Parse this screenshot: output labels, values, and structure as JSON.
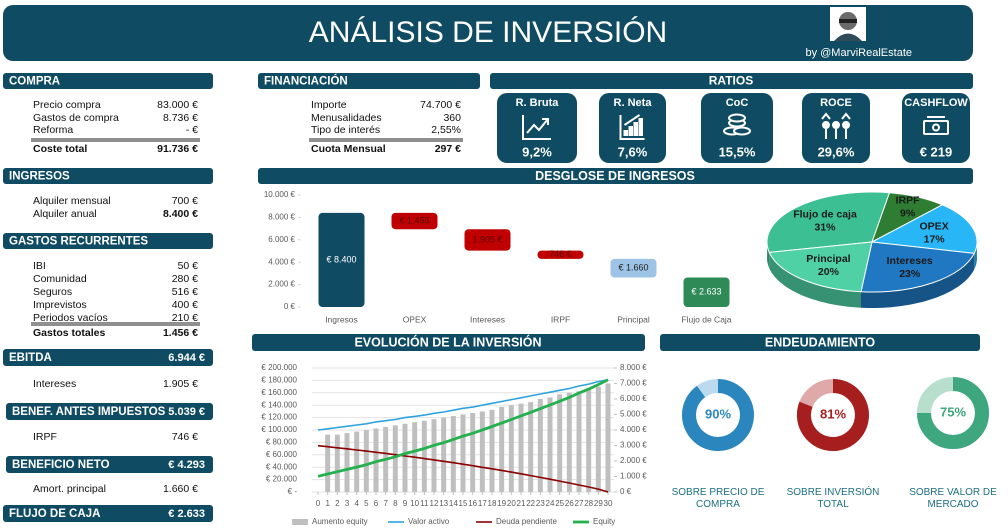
{
  "header": {
    "title": "ANÁLISIS DE INVERSIÓN",
    "byline": "by @MarviRealEstate"
  },
  "compra": {
    "title": "COMPRA",
    "rows": [
      [
        "Precio compra",
        "83.000 €"
      ],
      [
        "Gastos de compra",
        "8.736 €"
      ],
      [
        "Reforma",
        "-   €"
      ]
    ],
    "total": [
      "Coste total",
      "91.736 €"
    ]
  },
  "ingresos": {
    "title": "INGRESOS",
    "rows": [
      [
        "Alquiler mensual",
        "700 €"
      ]
    ],
    "total": [
      "Alquiler anual",
      "8.400 €"
    ]
  },
  "gastos": {
    "title": "GASTOS RECURRENTES",
    "rows": [
      [
        "IBI",
        "50 €"
      ],
      [
        "Comunidad",
        "280 €"
      ],
      [
        "Seguros",
        "516 €"
      ],
      [
        "Imprevistos",
        "400 €"
      ],
      [
        "Periodos vacíos",
        "210 €"
      ]
    ],
    "total": [
      "Gastos totales",
      "1.456 €"
    ]
  },
  "ebitda": {
    "label": "EBITDA",
    "value": "6.944 €"
  },
  "intereses": {
    "label": "Intereses",
    "value": "1.905 €"
  },
  "bai": {
    "label": "BENEF. ANTES IMPUESTOS",
    "value": "5.039 €"
  },
  "irpf": {
    "label": "IRPF",
    "value": "746 €"
  },
  "beneficio_neto": {
    "label": "BENEFICIO NETO",
    "value": "€ 4.293"
  },
  "amortizacion": {
    "label": "Amort. principal",
    "value": "1.660 €"
  },
  "flujo_caja": {
    "label": "FLUJO DE CAJA",
    "value": "€ 2.633"
  },
  "financiacion": {
    "title": "FINANCIACIÓN",
    "rows": [
      [
        "Importe",
        "74.700 €"
      ],
      [
        "Menusalidades",
        "360"
      ],
      [
        "Tipo de interés",
        "2,55%"
      ]
    ],
    "total": [
      "Cuota Mensual",
      "297 €"
    ]
  },
  "ratios": {
    "title": "RATIOS",
    "cards": [
      {
        "label": "R. Bruta",
        "value": "9,2%"
      },
      {
        "label": "R. Neta",
        "value": "7,6%"
      },
      {
        "label": "CoC",
        "value": "15,5%"
      },
      {
        "label": "ROCE",
        "value": "29,6%"
      },
      {
        "label": "CASHFLOW",
        "value": "€ 219"
      }
    ]
  },
  "chart_data": [
    {
      "type": "waterfall",
      "title": "DESGLOSE DE INGRESOS",
      "categories": [
        "Ingresos",
        "OPEX",
        "Intereses",
        "IRPF",
        "Principal",
        "Flujo de Caja"
      ],
      "values": [
        8400,
        1456,
        1905,
        746,
        1660,
        2633
      ],
      "value_labels": [
        "€ 8.400",
        "€ 1.456",
        "1.905 €",
        "746 €",
        "€ 1.660",
        "€ 2.633"
      ],
      "colors": [
        "#0f4c63",
        "#c00000",
        "#c00000",
        "#c00000",
        "#9dc3e6",
        "#2e8b57"
      ],
      "ylim": [
        0,
        10000
      ],
      "yticks": [
        {
          "value": 0,
          "label": "0 €"
        },
        {
          "value": 2000,
          "label": "2.000 €"
        },
        {
          "value": 4000,
          "label": "4.000 €"
        },
        {
          "value": 6000,
          "label": "6.000 €"
        },
        {
          "value": 8000,
          "label": "8.000 €"
        },
        {
          "value": 10000,
          "label": "10.000 €"
        }
      ]
    },
    {
      "type": "pie",
      "categories": [
        "Flujo de caja",
        "IRPF",
        "OPEX",
        "Intereses",
        "Principal"
      ],
      "values": [
        31,
        9,
        17,
        23,
        20
      ],
      "value_labels": [
        "31%",
        "9%",
        "17%",
        "23%",
        "20%"
      ],
      "colors": [
        "#3cbf93",
        "#2e7d32",
        "#29b6f6",
        "#1f78c1",
        "#4fd1a5"
      ]
    },
    {
      "type": "line",
      "title": "EVOLUCIÓN DE LA INVERSIÓN",
      "x": [
        0,
        1,
        2,
        3,
        4,
        5,
        6,
        7,
        8,
        9,
        10,
        11,
        12,
        13,
        14,
        15,
        16,
        17,
        18,
        19,
        20,
        21,
        22,
        23,
        24,
        25,
        26,
        27,
        28,
        29,
        30
      ],
      "xlim": [
        0,
        30
      ],
      "xticks": [
        0,
        1,
        2,
        3,
        4,
        5,
        6,
        7,
        8,
        9,
        10,
        11,
        12,
        13,
        14,
        15,
        16,
        17,
        18,
        19,
        20,
        21,
        22,
        23,
        24,
        25,
        26,
        27,
        28,
        29,
        30
      ],
      "ylim": [
        0,
        200000
      ],
      "yticks": [
        {
          "value": 0,
          "label": "€ -"
        },
        {
          "value": 20000,
          "label": "€ 20.000"
        },
        {
          "value": 40000,
          "label": "€ 40.000"
        },
        {
          "value": 60000,
          "label": "€ 60.000"
        },
        {
          "value": 80000,
          "label": "€ 80.000"
        },
        {
          "value": 100000,
          "label": "€ 100.000"
        },
        {
          "value": 120000,
          "label": "€ 120.000"
        },
        {
          "value": 140000,
          "label": "€ 140.000"
        },
        {
          "value": 160000,
          "label": "€ 160.000"
        },
        {
          "value": 180000,
          "label": "€ 180.000"
        },
        {
          "value": 200000,
          "label": "€ 200.000"
        }
      ],
      "y2lim": [
        0,
        8000
      ],
      "y2ticks": [
        {
          "value": 0,
          "label": "0 €"
        },
        {
          "value": 1000,
          "label": "1.000 €"
        },
        {
          "value": 2000,
          "label": "2.000 €"
        },
        {
          "value": 3000,
          "label": "3.000 €"
        },
        {
          "value": 4000,
          "label": "4.000 €"
        },
        {
          "value": 5000,
          "label": "5.000 €"
        },
        {
          "value": 6000,
          "label": "6.000 €"
        },
        {
          "value": 7000,
          "label": "7.000 €"
        },
        {
          "value": 8000,
          "label": "8.000 €"
        }
      ],
      "grid": true,
      "series": [
        {
          "name": "Aumento equity",
          "type": "bar",
          "axis": "y2",
          "color": "#bfbfbf",
          "values": [
            null,
            3700,
            3700,
            3800,
            3900,
            4000,
            4100,
            4200,
            4300,
            4400,
            4500,
            4600,
            4700,
            4800,
            4900,
            5000,
            5100,
            5200,
            5300,
            5500,
            5600,
            5700,
            5800,
            6000,
            6100,
            6300,
            6400,
            6500,
            6700,
            6800,
            7000
          ]
        },
        {
          "name": "Valor activo",
          "type": "line",
          "color": "#2ea3e0",
          "values": [
            100000,
            102000,
            104000,
            106000,
            108000,
            110000,
            113000,
            115000,
            117000,
            120000,
            122000,
            124000,
            127000,
            129000,
            132000,
            135000,
            137000,
            140000,
            143000,
            146000,
            149000,
            152000,
            155000,
            158000,
            161000,
            164000,
            167000,
            171000,
            174000,
            178000,
            181000
          ]
        },
        {
          "name": "Deuda pendiente",
          "type": "line",
          "color": "#8b0000",
          "values": [
            74700,
            73000,
            71300,
            69600,
            67800,
            66000,
            64100,
            62200,
            60200,
            58100,
            56100,
            53900,
            51700,
            49500,
            47200,
            44800,
            42400,
            39900,
            37400,
            34800,
            32100,
            29300,
            26500,
            23600,
            20700,
            17600,
            14500,
            11300,
            8000,
            4700,
            0
          ]
        },
        {
          "name": "Equity",
          "type": "line",
          "color": "#22b14c",
          "values": [
            25300,
            29000,
            32700,
            36400,
            40200,
            44000,
            48900,
            52800,
            56800,
            61900,
            65900,
            70100,
            75300,
            79500,
            84800,
            90200,
            94600,
            100100,
            105600,
            111200,
            116900,
            122700,
            128500,
            134400,
            140300,
            146400,
            152500,
            159700,
            166000,
            173300,
            181000
          ]
        }
      ]
    },
    {
      "type": "donut",
      "title": "ENDEUDAMIENTO",
      "categories": [
        "SOBRE PRECIO DE COMPRA",
        "SOBRE INVERSIÓN TOTAL",
        "SOBRE VALOR DE MERCADO"
      ],
      "values": [
        90,
        81,
        75
      ],
      "value_labels": [
        "90%",
        "81%",
        "75%"
      ],
      "colors": [
        "#2a86bd",
        "#a61e1e",
        "#3ea77f"
      ],
      "track_colors": [
        "#bcdaee",
        "#e0a9a9",
        "#b8dfcd"
      ]
    }
  ]
}
